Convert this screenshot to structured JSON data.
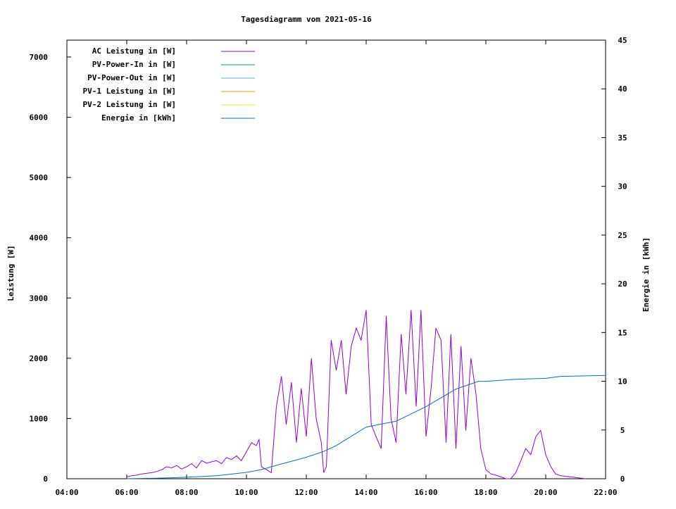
{
  "chart_data": {
    "type": "line",
    "title": "Tagesdiagramm vom 2021-05-16",
    "ylabel": "Leistung [W]",
    "y2label": "Energie in [kWh]",
    "xlim_hours": [
      4,
      22
    ],
    "ylim": [
      0,
      7280
    ],
    "y2lim": [
      0,
      45
    ],
    "xticks": [
      {
        "h": 4,
        "label": "04:00"
      },
      {
        "h": 6,
        "label": "06:00"
      },
      {
        "h": 8,
        "label": "08:00"
      },
      {
        "h": 10,
        "label": "10:00"
      },
      {
        "h": 12,
        "label": "12:00"
      },
      {
        "h": 14,
        "label": "14:00"
      },
      {
        "h": 16,
        "label": "16:00"
      },
      {
        "h": 18,
        "label": "18:00"
      },
      {
        "h": 20,
        "label": "20:00"
      },
      {
        "h": 22,
        "label": "22:00"
      }
    ],
    "yticks": [
      0,
      1000,
      2000,
      3000,
      4000,
      5000,
      6000,
      7000
    ],
    "y2ticks": [
      0,
      5,
      10,
      15,
      20,
      25,
      30,
      35,
      40,
      45
    ],
    "legend_position": "top-left",
    "series": [
      {
        "name": "AC Leistung in [W]",
        "color": "#9400d3",
        "axis": "y",
        "x": [
          6,
          6.17,
          6.33,
          6.5,
          6.67,
          6.83,
          7,
          7.17,
          7.33,
          7.5,
          7.67,
          7.83,
          8,
          8.17,
          8.33,
          8.5,
          8.67,
          8.83,
          9,
          9.17,
          9.33,
          9.5,
          9.67,
          9.83,
          10,
          10.17,
          10.33,
          10.42,
          10.5,
          10.67,
          10.83,
          11,
          11.17,
          11.33,
          11.5,
          11.67,
          11.83,
          12,
          12.17,
          12.33,
          12.5,
          12.58,
          12.67,
          12.83,
          13,
          13.17,
          13.33,
          13.5,
          13.67,
          13.83,
          14,
          14.17,
          14.33,
          14.5,
          14.67,
          14.83,
          15,
          15.17,
          15.33,
          15.5,
          15.67,
          15.83,
          16,
          16.17,
          16.33,
          16.5,
          16.67,
          16.83,
          17,
          17.17,
          17.33,
          17.5,
          17.67,
          17.83,
          18,
          18.17,
          18.33,
          18.5,
          18.67,
          18.83,
          19,
          19.17,
          19.33,
          19.5,
          19.67,
          19.83,
          20,
          20.17,
          20.33,
          20.5,
          20.67,
          20.83,
          21,
          21.17,
          21.33
        ],
        "y": [
          30,
          50,
          60,
          80,
          90,
          100,
          120,
          150,
          200,
          180,
          220,
          160,
          200,
          250,
          180,
          300,
          260,
          280,
          300,
          250,
          350,
          320,
          380,
          300,
          450,
          600,
          550,
          650,
          200,
          150,
          100,
          1200,
          1700,
          900,
          1600,
          600,
          1500,
          700,
          2000,
          1000,
          600,
          100,
          200,
          2300,
          1800,
          2300,
          1400,
          2200,
          2500,
          2300,
          2800,
          900,
          700,
          500,
          2700,
          1000,
          600,
          2400,
          1400,
          2800,
          1200,
          2800,
          700,
          1500,
          2500,
          2300,
          600,
          2400,
          500,
          2200,
          800,
          2000,
          1400,
          500,
          150,
          80,
          60,
          30,
          0,
          0,
          100,
          300,
          500,
          400,
          700,
          800,
          400,
          200,
          80,
          50,
          40,
          30,
          20,
          10,
          0
        ]
      },
      {
        "name": "PV-Power-In in [W]",
        "color": "#009e73",
        "axis": "y",
        "x": [],
        "y": []
      },
      {
        "name": "PV-Power-Out in [W]",
        "color": "#56b4e9",
        "axis": "y",
        "x": [],
        "y": []
      },
      {
        "name": "PV-1 Leistung in [W]",
        "color": "#e69f00",
        "axis": "y",
        "x": [],
        "y": []
      },
      {
        "name": "PV-2 Leistung in [W]",
        "color": "#f0e442",
        "axis": "y",
        "x": [],
        "y": []
      },
      {
        "name": "Energie in [kWh]",
        "color": "#0072b2",
        "axis": "y2",
        "x": [
          6,
          7,
          8,
          9,
          10,
          10.5,
          11,
          12,
          12.58,
          13,
          14,
          15,
          16,
          17,
          17.75,
          18,
          19,
          20,
          20.5,
          22
        ],
        "y": [
          0,
          0.05,
          0.15,
          0.3,
          0.65,
          0.94,
          1.37,
          2.2,
          2.8,
          3.4,
          5.3,
          5.9,
          7.4,
          9.2,
          10.0,
          10.0,
          10.2,
          10.3,
          10.5,
          10.6
        ]
      }
    ]
  }
}
